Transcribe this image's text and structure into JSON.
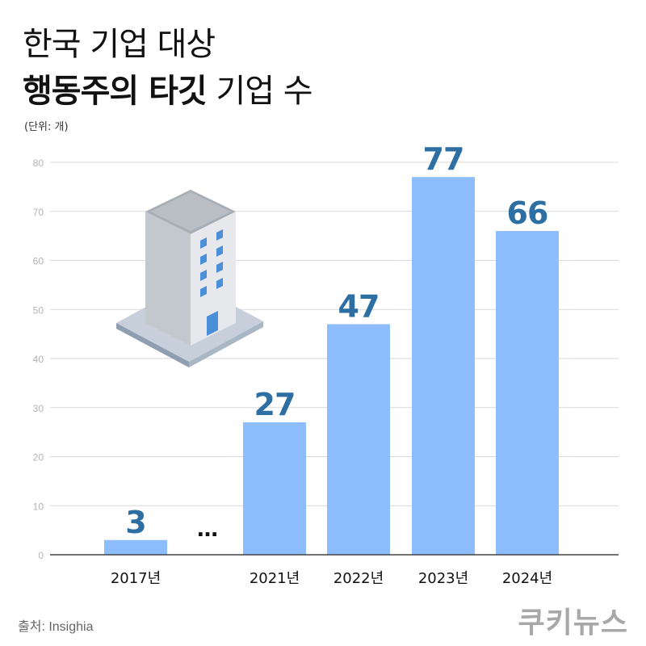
{
  "title": {
    "line1": "한국 기업 대상",
    "line2_bold": "행동주의 타깃",
    "line2_regular": "기업 수"
  },
  "unit_label": "(단위: 개)",
  "source": "출처: Insighia",
  "logo_text": "쿠키뉴스",
  "gap_marker": "…",
  "colors": {
    "bar": "#8dbdfd",
    "value_label": "#2e6fa3",
    "grid": "#d9d9d9",
    "axis": "#444444",
    "tick": "#b3b3b3"
  },
  "chart_data": {
    "type": "bar",
    "categories": [
      "2017년",
      "2021년",
      "2022년",
      "2023년",
      "2024년"
    ],
    "values": [
      3,
      27,
      47,
      77,
      66
    ],
    "data_labels": [
      "3",
      "27",
      "47",
      "77",
      "66"
    ],
    "y_ticks": [
      "0",
      "10",
      "20",
      "30",
      "40",
      "50",
      "60",
      "70",
      "80"
    ],
    "ylim": [
      0,
      80
    ],
    "grid": true,
    "axis_break_after": "2017년"
  }
}
